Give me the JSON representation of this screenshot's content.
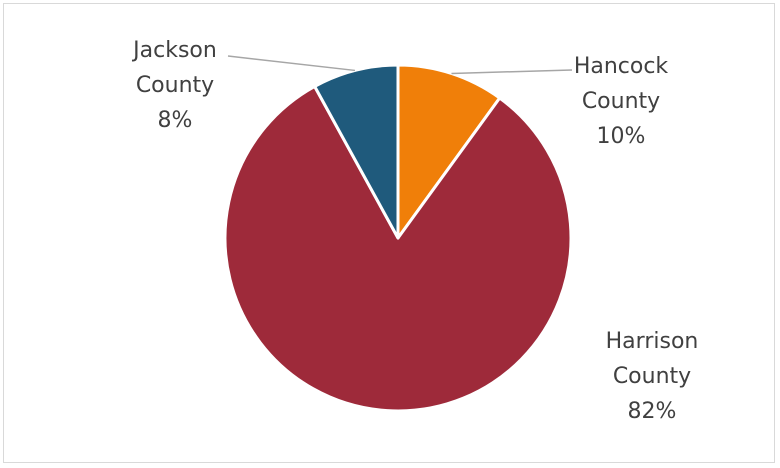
{
  "chart_data": {
    "type": "pie",
    "title": "",
    "start_angle_deg": 0,
    "direction": "clockwise",
    "slices": [
      {
        "label_line1": "Hancock",
        "label_line2": "County",
        "value": 10,
        "percent_label": "10%",
        "color": "#f07f09"
      },
      {
        "label_line1": "Harrison",
        "label_line2": "County",
        "value": 82,
        "percent_label": "82%",
        "color": "#9e2a3a"
      },
      {
        "label_line1": "Jackson",
        "label_line2": "County",
        "value": 8,
        "percent_label": "8%",
        "color": "#1f5a7c"
      }
    ],
    "slice_border_color": "#ffffff",
    "leader_line_color": "#a6a6a6",
    "legend": "none"
  }
}
